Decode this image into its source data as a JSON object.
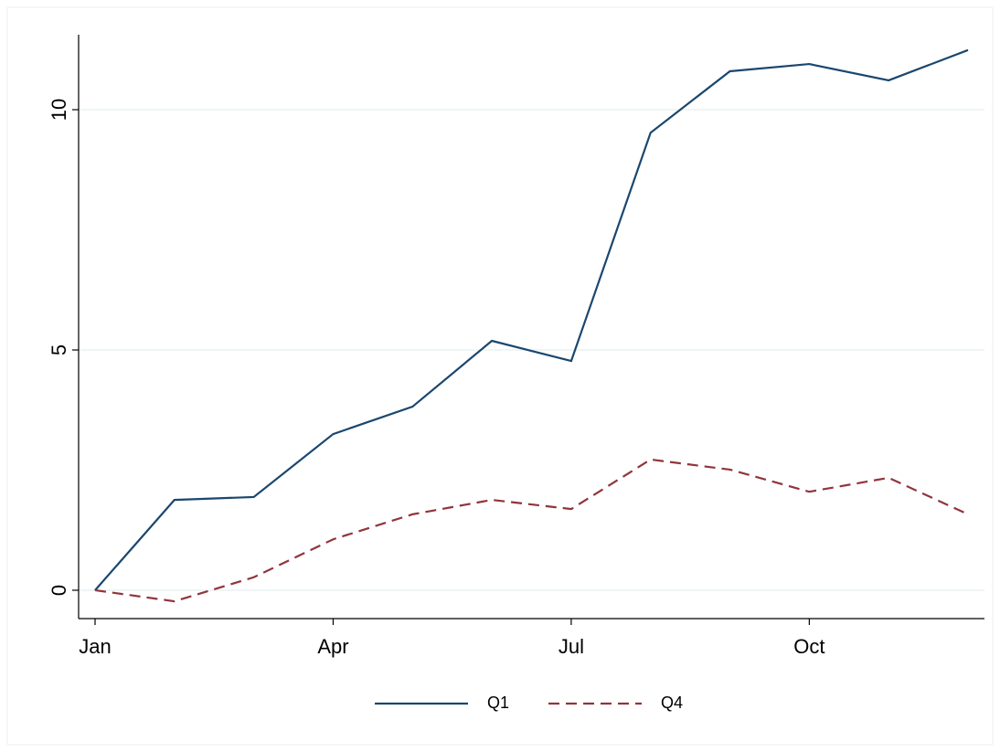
{
  "chart_data": {
    "type": "line",
    "categories": [
      "Jan",
      null,
      null,
      "Apr",
      null,
      null,
      "Jul",
      null,
      null,
      "Oct",
      null,
      null
    ],
    "series": [
      {
        "name": "Q1",
        "color": "#1a476f",
        "style": "solid",
        "values": [
          0,
          1.88,
          1.94,
          3.25,
          3.82,
          5.19,
          4.77,
          9.52,
          10.8,
          10.95,
          10.61,
          11.24
        ]
      },
      {
        "name": "Q4",
        "color": "#90353b",
        "style": "dashed",
        "values": [
          0,
          -0.23,
          0.27,
          1.06,
          1.58,
          1.88,
          1.69,
          2.72,
          2.51,
          2.05,
          2.34,
          1.58
        ]
      }
    ],
    "ylim": [
      -0.59,
      11.56
    ],
    "yticks": [
      0,
      5,
      10
    ],
    "grid": true,
    "legend": "bottom"
  }
}
